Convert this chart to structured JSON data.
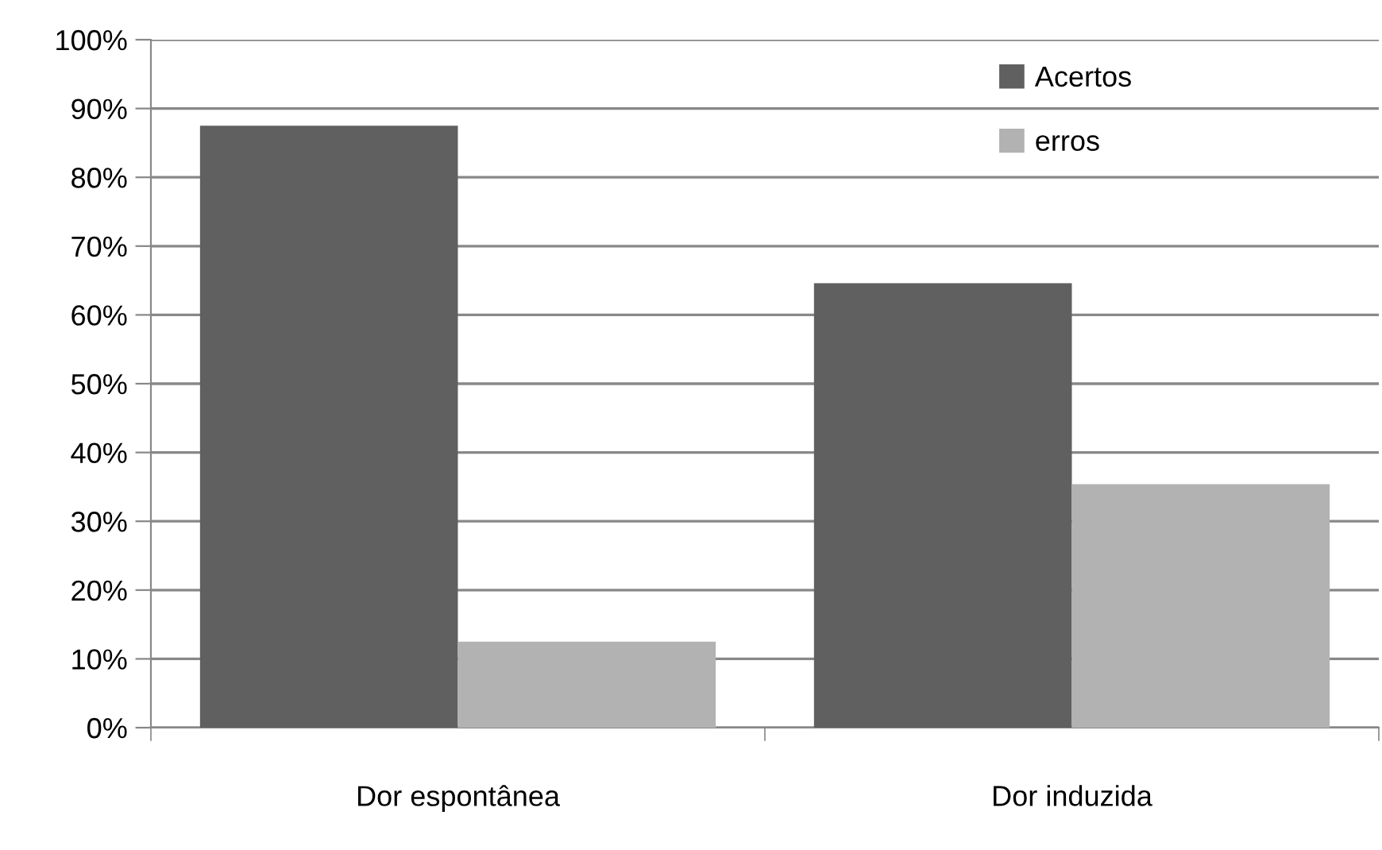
{
  "chart_data": {
    "type": "bar",
    "categories": [
      "Dor espontânea",
      "Dor induzida"
    ],
    "series": [
      {
        "name": "Acertos",
        "color": "#606060",
        "values": [
          87.5,
          64.6
        ]
      },
      {
        "name": "erros",
        "color": "#b2b2b2",
        "values": [
          12.5,
          35.4
        ]
      }
    ],
    "ylim": [
      0,
      100
    ],
    "yticks": [
      {
        "value": 0,
        "label": "0%"
      },
      {
        "value": 10,
        "label": "10%"
      },
      {
        "value": 20,
        "label": "20%"
      },
      {
        "value": 30,
        "label": "30%"
      },
      {
        "value": 40,
        "label": "40%"
      },
      {
        "value": 50,
        "label": "50%"
      },
      {
        "value": 60,
        "label": "60%"
      },
      {
        "value": 70,
        "label": "70%"
      },
      {
        "value": 80,
        "label": "80%"
      },
      {
        "value": 90,
        "label": "90%"
      },
      {
        "value": 100,
        "label": "100%"
      }
    ],
    "grid": "y",
    "legend": "top right"
  }
}
